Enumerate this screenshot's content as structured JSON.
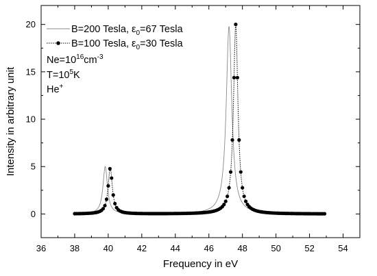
{
  "chart_data": {
    "type": "line",
    "xlabel": "Frequency in eV",
    "ylabel": "Intensity in arbitrary unit",
    "xlim": [
      36,
      55
    ],
    "ylim": [
      -2.5,
      22
    ],
    "x_ticks": [
      36,
      38,
      40,
      42,
      44,
      46,
      48,
      50,
      52,
      54
    ],
    "y_ticks": [
      0,
      5,
      10,
      15,
      20
    ],
    "grid": false,
    "legend_position": "top-left",
    "series": [
      {
        "name_parts": [
          "B=200 Tesla, ε",
          "0",
          "=67 Tesla"
        ],
        "style": "thin-line",
        "color": "#888888",
        "peaks": [
          {
            "center": 39.82,
            "height": 5.0,
            "width": 0.16
          },
          {
            "center": 47.2,
            "height": 19.8,
            "width": 0.2
          }
        ],
        "x_range": [
          38,
          52.9
        ]
      },
      {
        "name_parts": [
          "B=100 Tesla, ε",
          "0",
          "=30 Tesla"
        ],
        "style": "dotted-line-with-markers",
        "color": "#000000",
        "peaks": [
          {
            "center": 40.12,
            "height": 4.85,
            "width": 0.15
          },
          {
            "center": 47.6,
            "height": 20.0,
            "width": 0.16
          }
        ],
        "x_range": [
          38,
          52.9
        ],
        "marker_step": 0.1
      }
    ],
    "annotations": [
      {
        "parts": [
          "Ne=10",
          "16",
          "cm",
          "-3"
        ]
      },
      {
        "parts": [
          "T=10",
          "5",
          "K"
        ]
      },
      {
        "parts": [
          "He",
          "+"
        ]
      }
    ]
  }
}
